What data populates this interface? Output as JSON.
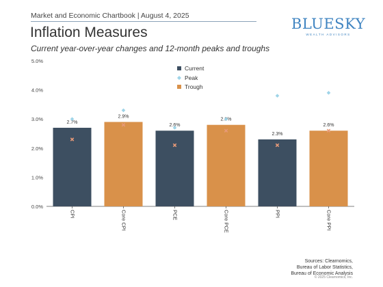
{
  "header": {
    "text": "Market and Economic Chartbook | August 4, 2025",
    "title": "Inflation Measures",
    "subtitle": "Current year-over-year changes and 12-month peaks and troughs"
  },
  "logo": {
    "main": "BLUESKY",
    "sub": "WEALTH ADVISORS"
  },
  "footer": {
    "sources": [
      "Sources: Clearnomics,",
      "Bureau of Labor Statistics,",
      "Bureau of Economic Analysis"
    ],
    "copyright": "© 2025 Clearnomics, Inc."
  },
  "colors": {
    "current": "#3d4f61",
    "trough": "#d9914a",
    "peak": "#9ed4e8",
    "trough_marker": "#e89a78"
  },
  "chart_data": {
    "type": "bar",
    "categories": [
      "CPI",
      "Core CPI",
      "PCE",
      "Core PCE",
      "PPI",
      "Core PPI"
    ],
    "series": [
      {
        "name": "Current",
        "values": [
          2.7,
          2.9,
          2.6,
          2.8,
          2.3,
          2.6
        ],
        "labels": [
          "2.7%",
          "2.9%",
          "2.6%",
          "2.8%",
          "2.3%",
          "2.6%"
        ]
      },
      {
        "name": "Peak",
        "values": [
          3.0,
          3.3,
          2.7,
          3.0,
          3.8,
          3.9
        ]
      },
      {
        "name": "Trough",
        "values": [
          2.3,
          2.8,
          2.1,
          2.6,
          2.1,
          2.6
        ]
      }
    ],
    "bar_colors": [
      "current",
      "trough",
      "current",
      "trough",
      "current",
      "trough"
    ],
    "ylim": [
      0,
      5
    ],
    "yticks": [
      0,
      1,
      2,
      3,
      4,
      5
    ],
    "ytick_labels": [
      "0.0%",
      "1.0%",
      "2.0%",
      "3.0%",
      "4.0%",
      "5.0%"
    ],
    "legend_position": "top-center",
    "grid": false
  }
}
